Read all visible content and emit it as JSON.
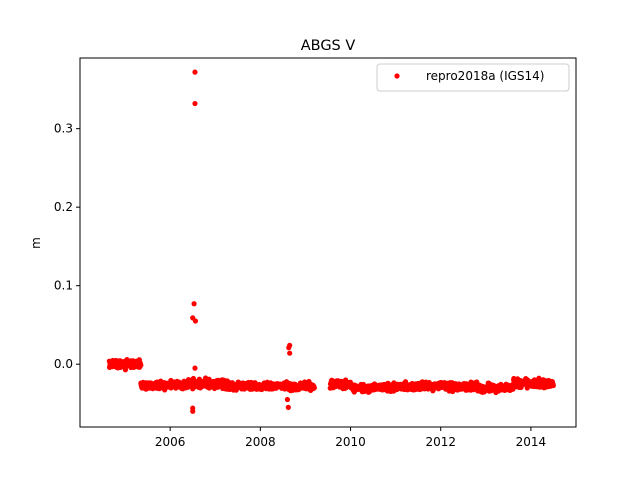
{
  "chart_data": {
    "type": "scatter",
    "title": "ABGS V",
    "xlabel": "",
    "ylabel": "m",
    "xlim": [
      2004.0,
      2015.0
    ],
    "ylim": [
      -0.08,
      0.39
    ],
    "x_ticks": [
      2006,
      2008,
      2010,
      2012,
      2014
    ],
    "x_tick_labels": [
      "2006",
      "2008",
      "2010",
      "2012",
      "2014"
    ],
    "y_ticks": [
      0.0,
      0.1,
      0.2,
      0.3
    ],
    "y_tick_labels": [
      "0.0",
      "0.1",
      "0.2",
      "0.3"
    ],
    "grid": false,
    "legend_position": "upper right",
    "series": [
      {
        "name": "repro2018a (IGS14)",
        "color": "#ff0000",
        "marker": "circle",
        "segments": [
          {
            "x_start": 2004.65,
            "x_end": 2005.35,
            "y_center": 0.0,
            "y_spread": 0.009
          },
          {
            "x_start": 2005.35,
            "x_end": 2006.4,
            "y_center": -0.027,
            "y_spread": 0.009
          },
          {
            "x_start": 2006.4,
            "x_end": 2007.3,
            "y_center": -0.025,
            "y_spread": 0.011
          },
          {
            "x_start": 2007.3,
            "x_end": 2009.2,
            "y_center": -0.028,
            "y_spread": 0.009
          },
          {
            "x_start": 2009.55,
            "x_end": 2010.0,
            "y_center": -0.026,
            "y_spread": 0.01
          },
          {
            "x_start": 2010.0,
            "x_end": 2011.0,
            "y_center": -0.03,
            "y_spread": 0.009
          },
          {
            "x_start": 2011.0,
            "x_end": 2012.8,
            "y_center": -0.028,
            "y_spread": 0.01
          },
          {
            "x_start": 2012.8,
            "x_end": 2013.6,
            "y_center": -0.03,
            "y_spread": 0.009
          },
          {
            "x_start": 2013.6,
            "x_end": 2014.5,
            "y_center": -0.025,
            "y_spread": 0.011
          }
        ],
        "outliers": [
          {
            "x": 2006.55,
            "y": 0.372
          },
          {
            "x": 2006.55,
            "y": 0.332
          },
          {
            "x": 2006.53,
            "y": 0.077
          },
          {
            "x": 2006.5,
            "y": 0.059
          },
          {
            "x": 2006.56,
            "y": 0.055
          },
          {
            "x": 2006.5,
            "y": -0.056
          },
          {
            "x": 2006.5,
            "y": -0.06
          },
          {
            "x": 2006.55,
            "y": -0.005
          },
          {
            "x": 2008.65,
            "y": 0.024
          },
          {
            "x": 2008.63,
            "y": 0.021
          },
          {
            "x": 2008.65,
            "y": 0.014
          },
          {
            "x": 2008.62,
            "y": -0.055
          },
          {
            "x": 2008.6,
            "y": -0.045
          }
        ]
      }
    ]
  }
}
